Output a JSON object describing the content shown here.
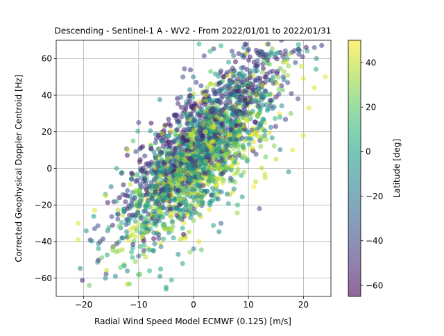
{
  "chart_data": {
    "type": "scatter",
    "title": "Descending - Sentinel-1 A - WV2 - From 2022/01/01 to 2022/01/31",
    "xlabel": "Radial Wind Speed Model ECMWF (0.125) [m/s]",
    "ylabel": "Corrected Geophysical Doppler Centroid [Hz]",
    "xlim": [
      -25,
      25
    ],
    "ylim": [
      -70,
      70
    ],
    "xticks": [
      -20,
      -10,
      0,
      10,
      20
    ],
    "yticks": [
      -60,
      -40,
      -20,
      0,
      20,
      40,
      60
    ],
    "grid": true,
    "marker_alpha": 0.55,
    "colormap": "viridis",
    "colorbar": {
      "label": "Latitude [deg]",
      "range": [
        -65,
        50
      ],
      "ticks": [
        -60,
        -40,
        -20,
        0,
        20,
        40
      ]
    },
    "trend": {
      "slope": 2.6,
      "intercept": 4,
      "spread_hz": 15
    },
    "sample_points": [
      {
        "x": -21,
        "y": -39,
        "lat": 45
      },
      {
        "x": -21,
        "y": -30,
        "lat": 45
      },
      {
        "x": -18,
        "y": -33,
        "lat": -40
      },
      {
        "x": -17,
        "y": -40,
        "lat": -40
      },
      {
        "x": -18,
        "y": -23,
        "lat": 45
      },
      {
        "x": -13,
        "y": -38,
        "lat": -30
      },
      {
        "x": -12,
        "y": -28,
        "lat": -20
      },
      {
        "x": -8,
        "y": -56,
        "lat": 10
      },
      {
        "x": -6,
        "y": -55,
        "lat": 0
      },
      {
        "x": -5,
        "y": -65,
        "lat": 0
      },
      {
        "x": -5,
        "y": -66,
        "lat": 5
      },
      {
        "x": -4,
        "y": -61,
        "lat": 5
      },
      {
        "x": -2,
        "y": -52,
        "lat": 0
      },
      {
        "x": 0,
        "y": -44,
        "lat": -20
      },
      {
        "x": 1,
        "y": -40,
        "lat": 45
      },
      {
        "x": 3,
        "y": -20,
        "lat": 0
      },
      {
        "x": 5,
        "y": -30,
        "lat": -30
      },
      {
        "x": 8,
        "y": -20,
        "lat": 10
      },
      {
        "x": 12,
        "y": -22,
        "lat": -40
      },
      {
        "x": 11,
        "y": -10,
        "lat": 50
      },
      {
        "x": 13,
        "y": -5,
        "lat": 40
      },
      {
        "x": 15,
        "y": 5,
        "lat": 40
      },
      {
        "x": 18,
        "y": 10,
        "lat": 45
      },
      {
        "x": 20,
        "y": 18,
        "lat": 45
      },
      {
        "x": 21,
        "y": 33,
        "lat": 45
      },
      {
        "x": 22,
        "y": 44,
        "lat": 45
      },
      {
        "x": 24,
        "y": 50,
        "lat": 45
      },
      {
        "x": 20,
        "y": 49,
        "lat": 45
      },
      {
        "x": 19,
        "y": 38,
        "lat": -40
      },
      {
        "x": 22,
        "y": 66,
        "lat": -40
      },
      {
        "x": 16,
        "y": 70,
        "lat": -40
      },
      {
        "x": 13,
        "y": 62,
        "lat": -40
      },
      {
        "x": 12,
        "y": 64,
        "lat": -40
      },
      {
        "x": 10,
        "y": 65,
        "lat": -40
      },
      {
        "x": 7,
        "y": 64,
        "lat": -40
      },
      {
        "x": 5,
        "y": 67,
        "lat": 10
      },
      {
        "x": 3,
        "y": 64,
        "lat": 10
      },
      {
        "x": 1,
        "y": 68,
        "lat": 10
      },
      {
        "x": -10,
        "y": 25,
        "lat": -40
      },
      {
        "x": -12,
        "y": 10,
        "lat": 45
      },
      {
        "x": -14,
        "y": 0,
        "lat": 5
      },
      {
        "x": -15,
        "y": -10,
        "lat": -20
      },
      {
        "x": -16,
        "y": -15,
        "lat": 45
      },
      {
        "x": -14,
        "y": -18,
        "lat": 5
      },
      {
        "x": -11,
        "y": 15,
        "lat": 20
      },
      {
        "x": -9,
        "y": -42,
        "lat": 10
      },
      {
        "x": -10,
        "y": -48,
        "lat": -30
      },
      {
        "x": 6,
        "y": 10,
        "lat": -20
      },
      {
        "x": 9,
        "y": 30,
        "lat": -50
      },
      {
        "x": 4,
        "y": 20,
        "lat": 0
      },
      {
        "x": -2,
        "y": 5,
        "lat": 20
      },
      {
        "x": -5,
        "y": -10,
        "lat": 0
      },
      {
        "x": 0,
        "y": 0,
        "lat": -10
      },
      {
        "x": 2,
        "y": 35,
        "lat": -60
      }
    ]
  }
}
